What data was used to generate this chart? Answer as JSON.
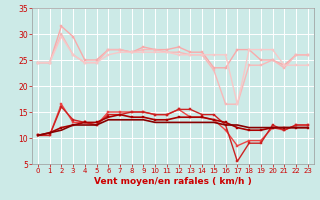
{
  "bg_color": "#cceae7",
  "grid_color": "#ffffff",
  "xlabel": "Vent moyen/en rafales ( km/h )",
  "xlabel_color": "#cc0000",
  "tick_color": "#cc0000",
  "xlim": [
    -0.5,
    23.5
  ],
  "ylim": [
    5,
    35
  ],
  "yticks": [
    5,
    10,
    15,
    20,
    25,
    30,
    35
  ],
  "xticks": [
    0,
    1,
    2,
    3,
    4,
    5,
    6,
    7,
    8,
    9,
    10,
    11,
    12,
    13,
    14,
    15,
    16,
    17,
    18,
    19,
    20,
    21,
    22,
    23
  ],
  "lines": [
    {
      "y": [
        24.5,
        24.5,
        31.5,
        29.5,
        25.0,
        25.0,
        27.0,
        27.0,
        26.5,
        27.5,
        27.0,
        27.0,
        27.5,
        26.5,
        26.5,
        23.5,
        23.5,
        27.0,
        27.0,
        25.0,
        25.0,
        24.0,
        26.0,
        26.0
      ],
      "color": "#f8aaaa",
      "lw": 1.0,
      "marker": "s",
      "ms": 1.5
    },
    {
      "y": [
        24.5,
        24.5,
        30.0,
        26.0,
        24.5,
        24.5,
        27.0,
        27.0,
        26.5,
        27.0,
        27.0,
        26.5,
        26.5,
        26.0,
        26.0,
        23.0,
        16.5,
        16.5,
        24.0,
        24.0,
        25.0,
        23.5,
        26.0,
        26.0
      ],
      "color": "#f8b8b8",
      "lw": 1.0,
      "marker": "s",
      "ms": 1.5
    },
    {
      "y": [
        24.5,
        24.5,
        29.5,
        26.0,
        24.5,
        24.5,
        26.0,
        26.5,
        26.5,
        26.5,
        26.5,
        26.5,
        26.0,
        26.0,
        26.0,
        26.0,
        26.0,
        16.5,
        27.0,
        27.0,
        27.0,
        24.0,
        24.0,
        24.0
      ],
      "color": "#f8c8c8",
      "lw": 1.0,
      "marker": "s",
      "ms": 1.5
    },
    {
      "y": [
        10.5,
        10.5,
        16.5,
        13.0,
        13.0,
        12.5,
        15.0,
        15.0,
        15.0,
        15.0,
        14.5,
        14.5,
        15.5,
        14.0,
        14.0,
        13.5,
        11.5,
        8.5,
        9.5,
        9.5,
        12.0,
        11.5,
        12.5,
        12.5
      ],
      "color": "#ee4444",
      "lw": 1.0,
      "marker": "s",
      "ms": 1.5
    },
    {
      "y": [
        10.5,
        10.5,
        16.0,
        13.5,
        13.0,
        12.5,
        14.5,
        14.5,
        15.0,
        15.0,
        14.5,
        14.5,
        15.5,
        15.5,
        14.5,
        14.5,
        12.5,
        5.5,
        9.0,
        9.0,
        12.5,
        11.5,
        12.5,
        12.5
      ],
      "color": "#cc2222",
      "lw": 1.0,
      "marker": "s",
      "ms": 1.5
    },
    {
      "y": [
        10.5,
        11.0,
        12.0,
        12.5,
        13.0,
        13.0,
        14.0,
        14.5,
        14.0,
        14.0,
        13.5,
        13.5,
        14.0,
        14.0,
        14.0,
        13.5,
        13.0,
        12.0,
        11.5,
        11.5,
        12.0,
        12.0,
        12.0,
        12.0
      ],
      "color": "#aa0000",
      "lw": 1.2,
      "marker": "s",
      "ms": 1.5
    },
    {
      "y": [
        10.5,
        11.0,
        11.5,
        12.5,
        12.5,
        12.5,
        13.5,
        13.5,
        13.5,
        13.5,
        13.0,
        13.0,
        13.0,
        13.0,
        13.0,
        13.0,
        12.5,
        12.5,
        12.0,
        12.0,
        12.0,
        12.0,
        12.0,
        12.0
      ],
      "color": "#880000",
      "lw": 1.2,
      "marker": null,
      "ms": 0
    }
  ]
}
